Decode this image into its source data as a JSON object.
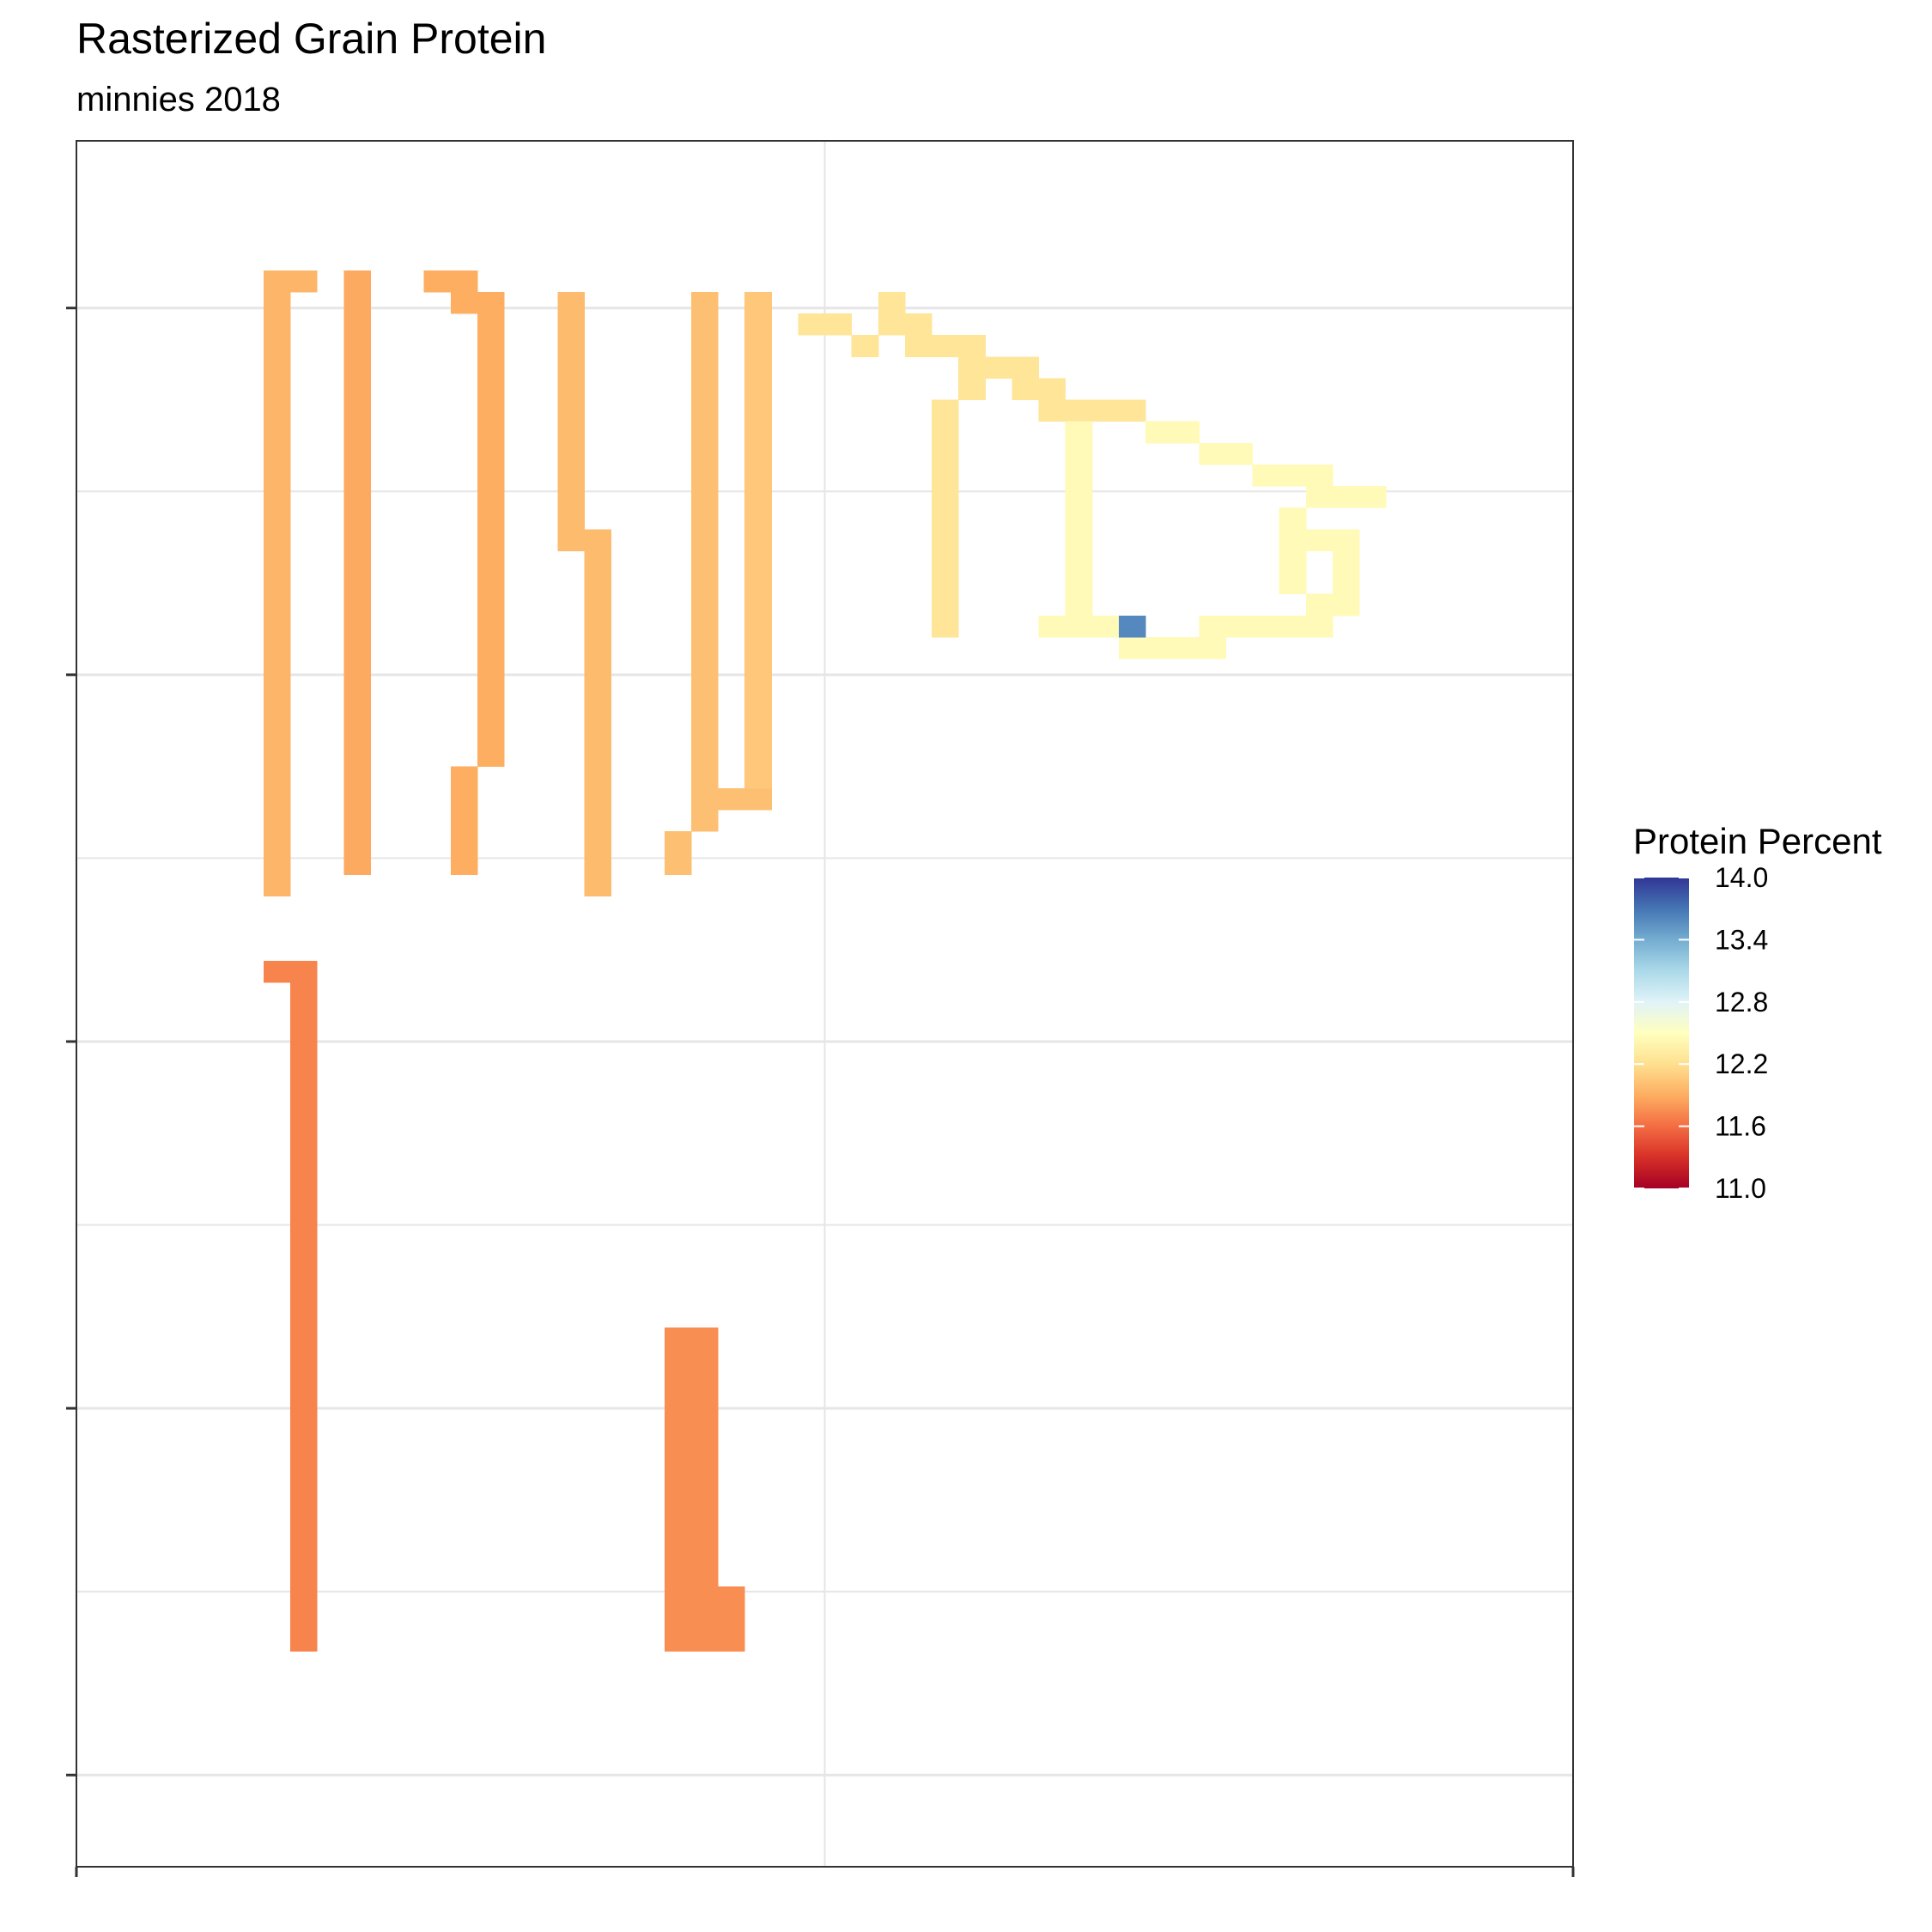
{
  "chart_data": {
    "type": "heatmap",
    "title": "Rasterized Grain Protein",
    "subtitle": "minnies 2018",
    "xlabel": "",
    "ylabel": "",
    "grid": true,
    "legend": {
      "title": "Protein Percent",
      "position": "right",
      "ticks": [
        "14.0",
        "13.4",
        "12.8",
        "12.2",
        "11.6",
        "11.0"
      ],
      "range": [
        11.0,
        14.0
      ],
      "palette": [
        "#a50026",
        "#d73027",
        "#f46d43",
        "#fdae61",
        "#fee090",
        "#ffffbf",
        "#e0f3f8",
        "#abd9e9",
        "#74add1",
        "#4575b4",
        "#313695"
      ]
    },
    "x_range": [
      0,
      56
    ],
    "y_range": [
      0,
      80
    ],
    "cell_values": {
      "column_1": 11.95,
      "column_2": 11.88,
      "column_3": 11.9,
      "column_4": 11.98,
      "column_5": 12.0,
      "column_6": 12.05,
      "hook_trace": 12.25,
      "loop_trace": 12.45,
      "high_cell": 13.6,
      "lower_column_1": 11.7,
      "lower_column_2": 11.75
    }
  }
}
